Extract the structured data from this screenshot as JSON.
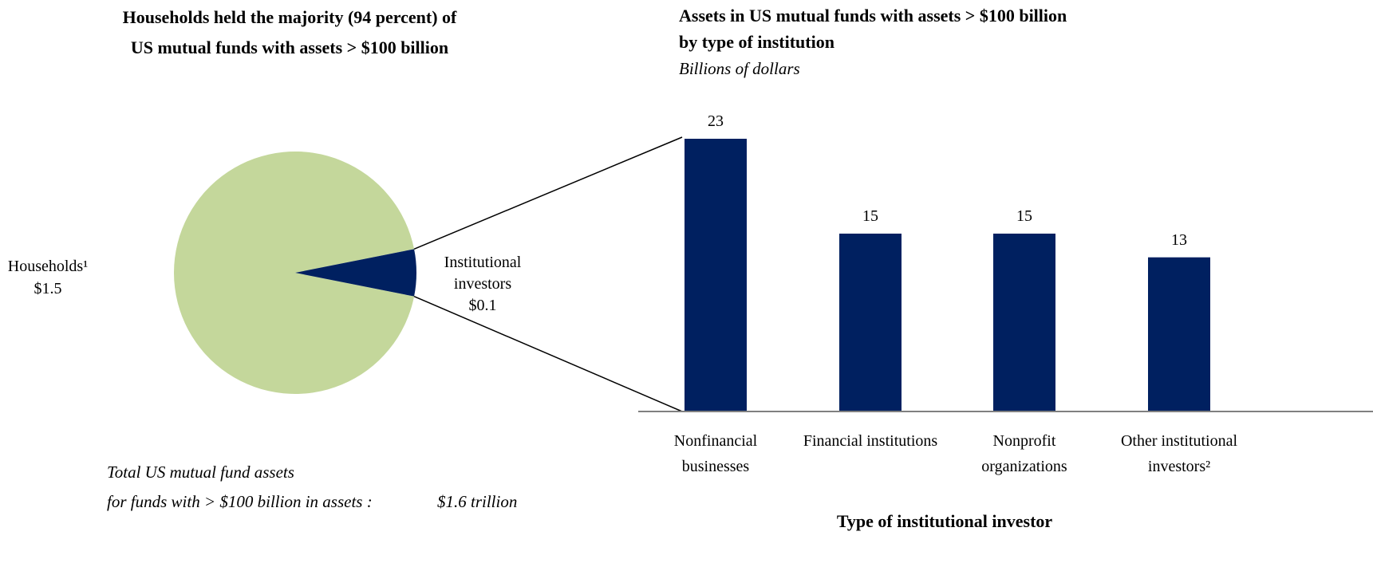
{
  "chart_data": [
    {
      "type": "pie",
      "title": [
        "Households held the majority (94 percent) of",
        "US mutual funds with assets > $100 billion"
      ],
      "categories": [
        "Households¹",
        "Institutional investors"
      ],
      "values": [
        1.5,
        0.1
      ],
      "value_labels": [
        "$1.5",
        "$0.1"
      ],
      "colors": [
        "#c4d79b",
        "#002060"
      ],
      "note": [
        "Total US mutual fund assets",
        "for funds with > $100 billion in assets :"
      ],
      "note_value": "$1.6 trillion"
    },
    {
      "type": "bar",
      "title": [
        "Assets in US mutual funds with assets > $100 billion",
        "by type of institution"
      ],
      "subtitle": "Billions of dollars",
      "xlabel": "Type of institutional investor",
      "categories": [
        "Nonfinancial businesses",
        "Financial institutions",
        "Nonprofit organizations",
        "Other institutional investors²"
      ],
      "values": [
        23,
        15,
        15,
        13
      ],
      "color": "#002060"
    }
  ]
}
